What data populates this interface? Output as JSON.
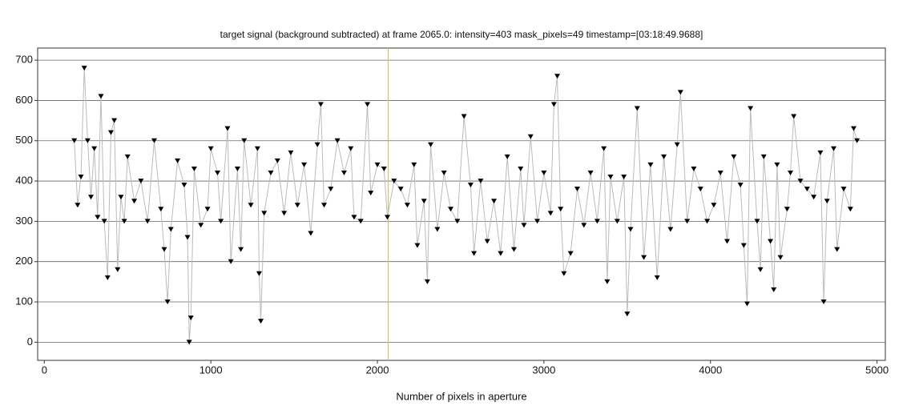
{
  "chart_data": {
    "type": "scatter",
    "title": "target signal (background subtracted) at frame 2065.0: intensity=403 mask_pixels=49 timestamp=[03:18:49.9688]",
    "x_label": "Number of pixels in aperture",
    "xlim": [
      -40,
      5050
    ],
    "ylim": [
      -45,
      730
    ],
    "xticks": [
      0,
      1000,
      2000,
      3000,
      4000,
      5000
    ],
    "yticks": [
      0,
      100,
      200,
      300,
      400,
      500,
      600,
      700
    ],
    "grid": true,
    "vline": 2065,
    "vline_color": "#c8bf8a",
    "marker_color": "#000000",
    "line_color": "#bbbbbb",
    "x": [
      180,
      200,
      220,
      240,
      260,
      280,
      300,
      320,
      340,
      360,
      380,
      400,
      420,
      440,
      460,
      480,
      500,
      540,
      580,
      620,
      660,
      700,
      720,
      740,
      760,
      800,
      840,
      860,
      870,
      880,
      900,
      940,
      980,
      1000,
      1040,
      1060,
      1100,
      1120,
      1160,
      1180,
      1200,
      1240,
      1280,
      1290,
      1300,
      1320,
      1360,
      1400,
      1440,
      1480,
      1520,
      1560,
      1600,
      1640,
      1660,
      1680,
      1720,
      1760,
      1800,
      1840,
      1860,
      1900,
      1940,
      1960,
      2000,
      2040,
      2060,
      2100,
      2140,
      2180,
      2220,
      2240,
      2280,
      2300,
      2320,
      2360,
      2400,
      2440,
      2480,
      2520,
      2560,
      2580,
      2620,
      2660,
      2700,
      2740,
      2780,
      2820,
      2860,
      2880,
      2920,
      2960,
      3000,
      3040,
      3060,
      3080,
      3100,
      3120,
      3160,
      3200,
      3240,
      3280,
      3320,
      3360,
      3380,
      3400,
      3440,
      3480,
      3500,
      3520,
      3560,
      3600,
      3640,
      3680,
      3720,
      3760,
      3800,
      3820,
      3860,
      3900,
      3940,
      3980,
      4020,
      4060,
      4100,
      4140,
      4180,
      4200,
      4220,
      4240,
      4280,
      4300,
      4320,
      4360,
      4380,
      4400,
      4420,
      4460,
      4480,
      4500,
      4540,
      4580,
      4620,
      4660,
      4680,
      4700,
      4740,
      4760,
      4800,
      4840,
      4860,
      4880
    ],
    "values": [
      500,
      340,
      410,
      680,
      500,
      360,
      480,
      310,
      610,
      300,
      160,
      520,
      550,
      180,
      360,
      300,
      460,
      350,
      400,
      300,
      500,
      330,
      230,
      100,
      280,
      450,
      390,
      260,
      0,
      60,
      430,
      290,
      330,
      480,
      420,
      300,
      530,
      200,
      430,
      230,
      500,
      340,
      480,
      170,
      52,
      320,
      420,
      450,
      320,
      470,
      340,
      440,
      270,
      490,
      590,
      340,
      380,
      500,
      420,
      480,
      310,
      300,
      590,
      370,
      440,
      430,
      310,
      400,
      380,
      340,
      440,
      240,
      350,
      150,
      490,
      280,
      420,
      330,
      300,
      560,
      390,
      220,
      400,
      250,
      350,
      220,
      460,
      230,
      430,
      290,
      510,
      300,
      420,
      320,
      590,
      660,
      330,
      170,
      220,
      380,
      290,
      420,
      300,
      480,
      150,
      410,
      300,
      410,
      70,
      280,
      580,
      210,
      440,
      160,
      460,
      280,
      490,
      620,
      300,
      430,
      380,
      300,
      340,
      420,
      250,
      460,
      390,
      240,
      95,
      580,
      300,
      180,
      460,
      250,
      130,
      440,
      210,
      330,
      420,
      560,
      400,
      380,
      360,
      470,
      100,
      350,
      480,
      230,
      380,
      330,
      530,
      500
    ]
  }
}
